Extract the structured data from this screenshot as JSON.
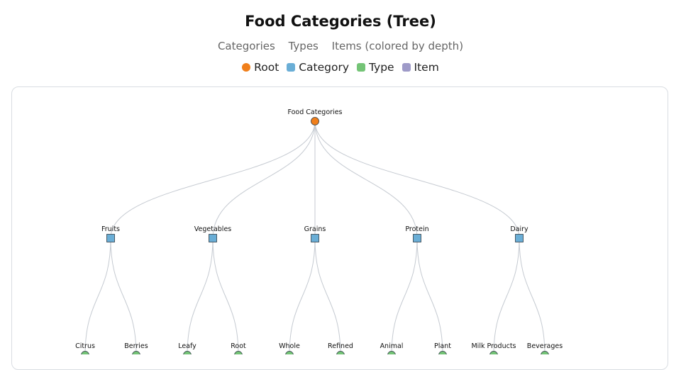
{
  "title": "Food Categories (Tree)",
  "subtitle": {
    "item1": "Categories",
    "item2": "Types",
    "item3": "Items (colored by depth)"
  },
  "legend": [
    {
      "label": "Root",
      "color": "#f07f1b"
    },
    {
      "label": "Category",
      "color": "#6aaed6"
    },
    {
      "label": "Type",
      "color": "#74c476"
    },
    {
      "label": "Item",
      "color": "#9e9ac8"
    }
  ],
  "tree": {
    "name": "Food Categories",
    "children": [
      {
        "name": "Fruits",
        "children": [
          {
            "name": "Citrus"
          },
          {
            "name": "Berries"
          }
        ]
      },
      {
        "name": "Vegetables",
        "children": [
          {
            "name": "Leafy"
          },
          {
            "name": "Root"
          }
        ]
      },
      {
        "name": "Grains",
        "children": [
          {
            "name": "Whole"
          },
          {
            "name": "Refined"
          }
        ]
      },
      {
        "name": "Protein",
        "children": [
          {
            "name": "Animal"
          },
          {
            "name": "Plant"
          }
        ]
      },
      {
        "name": "Dairy",
        "children": [
          {
            "name": "Milk Products"
          },
          {
            "name": "Beverages"
          }
        ]
      }
    ]
  }
}
